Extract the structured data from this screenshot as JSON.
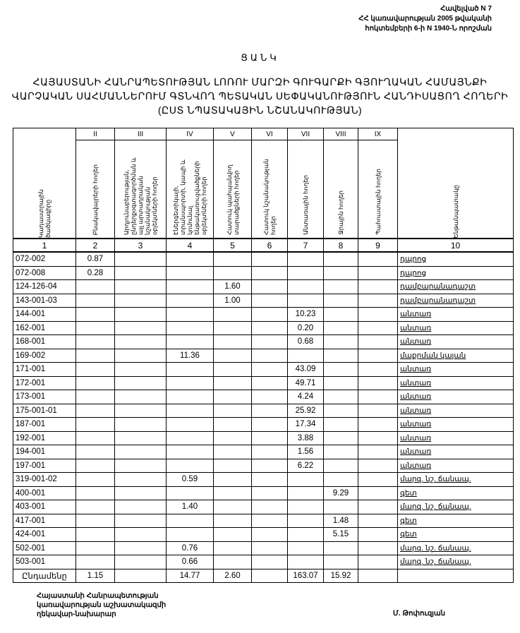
{
  "annex": {
    "lines": [
      "Հավելված N 7",
      "ՀՀ կառավարության 2005 թվականի",
      "հոկտեմբերի 6-ի N 1940-Ն որոշման"
    ]
  },
  "list_title": "ՑԱՆԿ",
  "main_title": "ՀԱՅԱՍՏԱՆԻ ՀԱՆՐԱՊԵՏՈՒԹՅԱՆ ԼՈՌՈՒ ՄԱՐԶԻ ԳՈՒԳԱՐՔԻ ԳՅՈՒՂԱԿԱՆ ՀԱՄԱՅՆՔԻ ՎԱՐՉԱԿԱՆ ՍԱՀՄԱՆՆԵՐՈՒՄ ԳՏՆՎՈՂ ՊԵՏԱԿԱՆ ՍԵՓԱԿԱՆՈՒԹՅՈՒՆ ՀԱՆԴԻՍԱՑՈՂ ՀՈՂԵՐԻ (ԸՍՏ ՆՊԱՏԱԿԱՅԻՆ ՆՇԱՆԱԿՈՒԹՅԱՆ)",
  "table": {
    "roman": [
      "",
      "II",
      "III",
      "IV",
      "V",
      "VI",
      "VII",
      "VIII",
      "IX"
    ],
    "headers": [
      "Կադաստրային ծածկագիրը",
      "Բնակավայրերի հողեր",
      "Արդյունաբերության, ընդերքօգտագործման և այլ արտադրական նշանակության օբյեկտների հողեր",
      "Էներգետիկայի, տրանսպորտի, կապի և կոմունալ ենթակառուցվածքների օբյեկտների հողեր",
      "Հատուկ պահպանվող տարածքների հողեր",
      "Հատուկ նշանակության հողեր",
      "Անտառային հողեր",
      "Ջրային հողեր",
      "Պահուստային հողեր",
      "Ենթանպատակը"
    ],
    "numbers": [
      "1",
      "2",
      "3",
      "4",
      "5",
      "6",
      "7",
      "8",
      "9",
      "10"
    ],
    "rows": [
      [
        "072-002",
        "0.87",
        "",
        "",
        "",
        "",
        "",
        "",
        "",
        "դպրոց"
      ],
      [
        "072-008",
        "0.28",
        "",
        "",
        "",
        "",
        "",
        "",
        "",
        "դպրոց"
      ],
      [
        "124-126-04",
        "",
        "",
        "",
        "1.60",
        "",
        "",
        "",
        "",
        "դամբարանադաշտ"
      ],
      [
        "143-001-03",
        "",
        "",
        "",
        "1.00",
        "",
        "",
        "",
        "",
        "դամբարանադաշտ"
      ],
      [
        "144-001",
        "",
        "",
        "",
        "",
        "",
        "10.23",
        "",
        "",
        "անտառ"
      ],
      [
        "162-001",
        "",
        "",
        "",
        "",
        "",
        "0.20",
        "",
        "",
        "անտառ"
      ],
      [
        "168-001",
        "",
        "",
        "",
        "",
        "",
        "0.68",
        "",
        "",
        "անտառ"
      ],
      [
        "169-002",
        "",
        "",
        "11.36",
        "",
        "",
        "",
        "",
        "",
        "մաքրման կայան"
      ],
      [
        "171-001",
        "",
        "",
        "",
        "",
        "",
        "43.09",
        "",
        "",
        "անտառ"
      ],
      [
        "172-001",
        "",
        "",
        "",
        "",
        "",
        "49.71",
        "",
        "",
        "անտառ"
      ],
      [
        "173-001",
        "",
        "",
        "",
        "",
        "",
        "4.24",
        "",
        "",
        "անտառ"
      ],
      [
        "175-001-01",
        "",
        "",
        "",
        "",
        "",
        "25.92",
        "",
        "",
        "անտառ"
      ],
      [
        "187-001",
        "",
        "",
        "",
        "",
        "",
        "17.34",
        "",
        "",
        "անտառ"
      ],
      [
        "192-001",
        "",
        "",
        "",
        "",
        "",
        "3.88",
        "",
        "",
        "անտառ"
      ],
      [
        "194-001",
        "",
        "",
        "",
        "",
        "",
        "1.56",
        "",
        "",
        "անտառ"
      ],
      [
        "197-001",
        "",
        "",
        "",
        "",
        "",
        "6.22",
        "",
        "",
        "անտառ"
      ],
      [
        "319-001-02",
        "",
        "",
        "0.59",
        "",
        "",
        "",
        "",
        "",
        "մարզ. նշ. ճանապ."
      ],
      [
        "400-001",
        "",
        "",
        "",
        "",
        "",
        "",
        "9.29",
        "",
        "գետ"
      ],
      [
        "403-001",
        "",
        "",
        "1.40",
        "",
        "",
        "",
        "",
        "",
        "մարզ. նշ. ճանապ."
      ],
      [
        "417-001",
        "",
        "",
        "",
        "",
        "",
        "",
        "1.48",
        "",
        "գետ"
      ],
      [
        "424-001",
        "",
        "",
        "",
        "",
        "",
        "",
        "5.15",
        "",
        "գետ"
      ],
      [
        "502-001",
        "",
        "",
        "0.76",
        "",
        "",
        "",
        "",
        "",
        "մարզ. նշ. ճանապ."
      ],
      [
        "503-001",
        "",
        "",
        "0.66",
        "",
        "",
        "",
        "",
        "",
        "մարզ. նշ. ճանապ."
      ]
    ],
    "total": [
      "Ընդամենը",
      "1.15",
      "",
      "14.77",
      "2.60",
      "",
      "163.07",
      "15.92",
      "",
      ""
    ]
  },
  "footer": {
    "lines": [
      "Հայաստանի Հանրապետության",
      "կառավարության աշխատակազմի",
      "ղեկավար-նախարար"
    ],
    "signer": "Մ. Թոփուզյան"
  }
}
